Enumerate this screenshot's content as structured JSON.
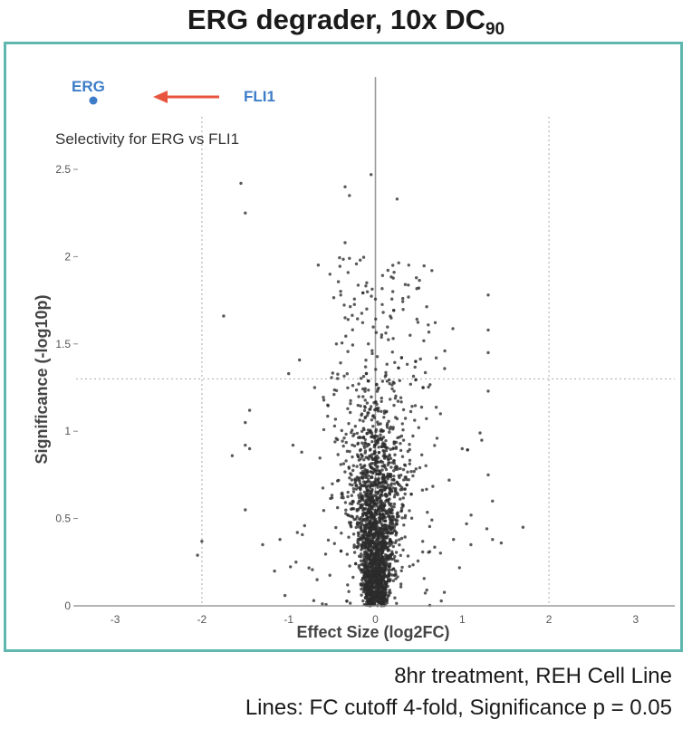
{
  "title_main": "ERG degrader, 10x DC",
  "title_sub": "90",
  "captions": {
    "line1": "8hr treatment, REH Cell Line",
    "line2": "Lines: FC cutoff 4-fold, Significance p = 0.05"
  },
  "annotations": {
    "erg_label": "ERG",
    "fli1_label": "FLI1",
    "selectivity_label": "Selectivity for ERG vs FLI1",
    "arrow_color": "#e8553e",
    "label_color": "#3d7cc9"
  },
  "chart_data": {
    "type": "scatter",
    "xlabel": "Effect Size (log2FC)",
    "ylabel": "Significance (-log10p)",
    "xlim": [
      -3.45,
      3.45
    ],
    "ylim": [
      0,
      2.5
    ],
    "x_ticks": [
      -3,
      -2,
      -1,
      0,
      1,
      2,
      3
    ],
    "x_tick_labels": [
      "-3",
      "-2",
      "-1",
      "0",
      "1",
      "2",
      "3"
    ],
    "y_ticks": [
      0,
      0.5,
      1,
      1.5,
      2,
      2.5
    ],
    "y_tick_labels": [
      "0",
      "0.5",
      "1",
      "1.5",
      "2",
      "2.5"
    ],
    "reference_lines": {
      "fc_cutoff_log2": [
        -2,
        2
      ],
      "significance_neglog10p": 1.3
    },
    "point_color": "#2b2b2b",
    "highlight_points": [
      {
        "label": "ERG",
        "x": -3.2,
        "y": 2.95
      },
      {
        "label": "FLI1",
        "x": -1.2,
        "y": 2.85
      }
    ],
    "points": [
      [
        -1.55,
        2.42
      ],
      [
        -1.5,
        2.25
      ],
      [
        -1.75,
        1.66
      ],
      [
        -1.0,
        1.33
      ],
      [
        -1.45,
        1.12
      ],
      [
        -1.5,
        1.05
      ],
      [
        -1.45,
        0.9
      ],
      [
        -1.5,
        0.92
      ],
      [
        -1.65,
        0.86
      ],
      [
        -1.5,
        0.55
      ],
      [
        -2.0,
        0.37
      ],
      [
        -2.05,
        0.29
      ],
      [
        -1.3,
        0.35
      ],
      [
        -1.1,
        0.38
      ],
      [
        -0.9,
        0.42
      ],
      [
        -0.85,
        0.88
      ],
      [
        -0.95,
        0.92
      ],
      [
        -0.7,
        1.25
      ],
      [
        -0.35,
        2.4
      ],
      [
        -0.3,
        2.35
      ],
      [
        -0.05,
        2.47
      ],
      [
        -0.35,
        2.08
      ],
      [
        -0.3,
        1.99
      ],
      [
        -0.1,
        1.85
      ],
      [
        -0.1,
        1.7
      ],
      [
        -0.4,
        1.78
      ],
      [
        -0.35,
        1.65
      ],
      [
        0.25,
        2.33
      ],
      [
        0.2,
        1.95
      ],
      [
        0.2,
        1.8
      ],
      [
        0.5,
        1.82
      ],
      [
        0.65,
        1.92
      ],
      [
        0.7,
        1.42
      ],
      [
        0.55,
        1.25
      ],
      [
        0.75,
        1.1
      ],
      [
        1.0,
        0.9
      ],
      [
        0.85,
        0.72
      ],
      [
        1.3,
        1.78
      ],
      [
        1.3,
        1.58
      ],
      [
        1.3,
        1.45
      ],
      [
        1.3,
        1.23
      ],
      [
        1.3,
        0.75
      ],
      [
        1.35,
        0.6
      ],
      [
        1.35,
        0.38
      ],
      [
        1.45,
        0.36
      ],
      [
        1.7,
        0.45
      ],
      [
        0.9,
        0.38
      ],
      [
        1.1,
        0.35
      ],
      [
        0.8,
        1.46
      ],
      [
        1.05,
        0.47
      ],
      [
        -0.55,
        1.15
      ],
      [
        0.4,
        1.55
      ],
      [
        -0.45,
        1.5
      ]
    ],
    "core_cluster": {
      "count": 2300,
      "seed": 7,
      "x_sd_base": 0.03,
      "x_sd_per_sig": 0.17,
      "sig_spread_low": 0.55,
      "sig_spread_high": 1.9,
      "fraction_high": 0.12,
      "x_jitter_wide": 0.45,
      "fraction_wide": 0.08
    }
  }
}
